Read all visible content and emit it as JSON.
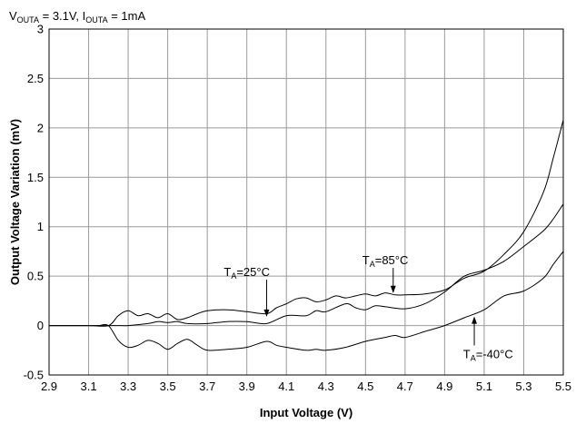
{
  "chart_data": {
    "type": "line",
    "condition": {
      "v_sym": "V",
      "v_sub": "OUTA",
      "v_rest": " = 3.1V, ",
      "i_sym": "I",
      "i_sub": "OUTA",
      "i_rest": " = 1mA"
    },
    "xlabel": "Input Voltage (V)",
    "ylabel": "Output Voltage Variation (mV)",
    "xlim": [
      2.9,
      5.5
    ],
    "ylim": [
      -0.5,
      3
    ],
    "grid": true,
    "x_ticks": [
      2.9,
      3.1,
      3.3,
      3.5,
      3.7,
      3.9,
      4.1,
      4.3,
      4.5,
      4.7,
      4.9,
      5.1,
      5.3,
      5.5
    ],
    "x_tick_labels": [
      "2.9",
      "3.1",
      "3.3",
      "3.5",
      "3.7",
      "3.9",
      "4.1",
      "4.3",
      "4.5",
      "4.7",
      "4.9",
      "5.1",
      "5.3",
      "5.5"
    ],
    "y_ticks": [
      -0.5,
      0,
      0.5,
      1,
      1.5,
      2,
      2.5,
      3
    ],
    "y_tick_labels": [
      "-0.5",
      "0",
      "0.5",
      "1",
      "1.5",
      "2",
      "2.5",
      "3"
    ],
    "series": [
      {
        "x": [
          2.9,
          3.1,
          3.2,
          3.25,
          3.3,
          3.35,
          3.4,
          3.45,
          3.5,
          3.55,
          3.6,
          3.65,
          3.7,
          3.8,
          3.9,
          4.0,
          4.05,
          4.1,
          4.15,
          4.2,
          4.25,
          4.3,
          4.35,
          4.4,
          4.45,
          4.5,
          4.55,
          4.6,
          4.65,
          4.7,
          4.8,
          4.9,
          5.0,
          5.1,
          5.2,
          5.3,
          5.4,
          5.45,
          5.5
        ],
        "values": [
          0,
          0,
          0,
          0.1,
          0.15,
          0.1,
          0.12,
          0.08,
          0.12,
          0.06,
          0.08,
          0.12,
          0.15,
          0.16,
          0.14,
          0.12,
          0.18,
          0.22,
          0.27,
          0.28,
          0.24,
          0.26,
          0.3,
          0.28,
          0.3,
          0.32,
          0.3,
          0.33,
          0.31,
          0.31,
          0.32,
          0.36,
          0.48,
          0.55,
          0.72,
          0.95,
          1.35,
          1.7,
          2.08
        ]
      },
      {
        "x": [
          2.9,
          3.1,
          3.2,
          3.25,
          3.3,
          3.4,
          3.45,
          3.5,
          3.55,
          3.6,
          3.7,
          3.8,
          3.9,
          4.0,
          4.1,
          4.2,
          4.25,
          4.3,
          4.4,
          4.45,
          4.5,
          4.55,
          4.6,
          4.7,
          4.8,
          4.9,
          5.0,
          5.1,
          5.2,
          5.3,
          5.4,
          5.45,
          5.5
        ],
        "values": [
          0,
          0,
          0,
          0,
          0,
          0.02,
          0.04,
          0.03,
          0.04,
          0.02,
          0.02,
          0.04,
          0.04,
          0.02,
          0.1,
          0.1,
          0.15,
          0.14,
          0.22,
          0.18,
          0.16,
          0.2,
          0.19,
          0.17,
          0.22,
          0.34,
          0.5,
          0.56,
          0.65,
          0.8,
          0.96,
          1.08,
          1.23
        ]
      },
      {
        "x": [
          2.9,
          3.1,
          3.15,
          3.2,
          3.25,
          3.3,
          3.35,
          3.4,
          3.45,
          3.5,
          3.55,
          3.6,
          3.65,
          3.7,
          3.8,
          3.9,
          4.0,
          4.05,
          4.1,
          4.2,
          4.25,
          4.3,
          4.4,
          4.5,
          4.6,
          4.65,
          4.7,
          4.8,
          4.9,
          5.0,
          5.1,
          5.2,
          5.3,
          5.4,
          5.45,
          5.5
        ],
        "values": [
          0,
          0,
          0,
          0,
          -0.15,
          -0.22,
          -0.2,
          -0.15,
          -0.18,
          -0.24,
          -0.18,
          -0.14,
          -0.2,
          -0.25,
          -0.24,
          -0.22,
          -0.16,
          -0.2,
          -0.22,
          -0.25,
          -0.24,
          -0.25,
          -0.22,
          -0.16,
          -0.12,
          -0.1,
          -0.12,
          -0.06,
          0.0,
          0.08,
          0.16,
          0.3,
          0.35,
          0.48,
          0.62,
          0.75
        ]
      }
    ],
    "annotations": [
      {
        "sym": "T",
        "sub": "A",
        "rest": "=25°C",
        "x": 4.0,
        "y": 0.08,
        "label_x": 3.9,
        "label_y": 0.5
      },
      {
        "sym": "T",
        "sub": "A",
        "rest": "=85°C",
        "x": 4.64,
        "y": 0.32,
        "label_x": 4.6,
        "label_y": 0.62
      },
      {
        "sym": "T",
        "sub": "A",
        "rest": "=-40°C",
        "x": 5.05,
        "y": 0.1,
        "label_x": 5.12,
        "label_y": -0.33
      }
    ]
  }
}
